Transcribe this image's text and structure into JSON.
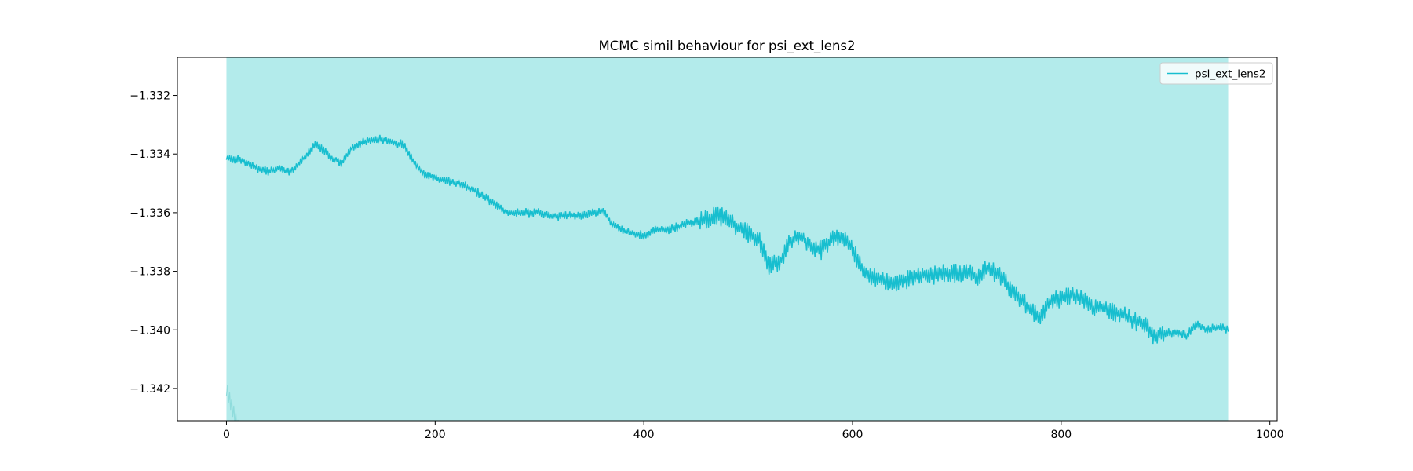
{
  "chart_data": {
    "type": "line",
    "title": "MCMC simil behaviour for psi_ext_lens2",
    "xlabel": "",
    "ylabel": "",
    "xlim": [
      -47,
      1007
    ],
    "ylim": [
      -1.3431,
      -1.3307
    ],
    "xticks": [
      0,
      200,
      400,
      600,
      800,
      1000
    ],
    "xtick_labels": [
      "0",
      "200",
      "400",
      "600",
      "800",
      "1000"
    ],
    "yticks": [
      -1.342,
      -1.34,
      -1.338,
      -1.336,
      -1.334,
      -1.332
    ],
    "ytick_labels": [
      "−1.342",
      "−1.340",
      "−1.338",
      "−1.336",
      "−1.334",
      "−1.332"
    ],
    "grid": false,
    "legend": {
      "location": "upper right",
      "entries": [
        "psi_ext_lens2"
      ]
    },
    "colors": {
      "line": "#17becf",
      "band": "#b3ebeb",
      "axes": "#000000"
    },
    "band": {
      "x_start": 0,
      "x_end": 960,
      "description_note": "shaded uncertainty band spanning the full y-range for iterations 0-960"
    },
    "series": [
      {
        "name": "psi_ext_lens2",
        "x": [
          0,
          10,
          20,
          30,
          40,
          50,
          60,
          70,
          80,
          85,
          90,
          100,
          110,
          120,
          130,
          140,
          150,
          160,
          170,
          180,
          190,
          200,
          210,
          220,
          230,
          240,
          250,
          260,
          270,
          280,
          290,
          300,
          310,
          320,
          330,
          340,
          350,
          360,
          370,
          380,
          390,
          400,
          410,
          420,
          430,
          440,
          450,
          460,
          470,
          480,
          490,
          500,
          510,
          520,
          530,
          540,
          550,
          560,
          570,
          580,
          590,
          600,
          610,
          620,
          630,
          640,
          650,
          660,
          670,
          680,
          690,
          700,
          710,
          720,
          730,
          740,
          750,
          760,
          770,
          780,
          790,
          800,
          810,
          820,
          830,
          840,
          850,
          860,
          870,
          880,
          890,
          900,
          910,
          920,
          930,
          940,
          950,
          960
        ],
        "values": [
          -1.3341,
          -1.3342,
          -1.3343,
          -1.3345,
          -1.3346,
          -1.3345,
          -1.3346,
          -1.3343,
          -1.3339,
          -1.3337,
          -1.3338,
          -1.3341,
          -1.3343,
          -1.3338,
          -1.3336,
          -1.3335,
          -1.3335,
          -1.3336,
          -1.3337,
          -1.3343,
          -1.3347,
          -1.3348,
          -1.3349,
          -1.335,
          -1.3351,
          -1.3353,
          -1.3355,
          -1.3358,
          -1.336,
          -1.336,
          -1.336,
          -1.336,
          -1.3361,
          -1.3361,
          -1.3361,
          -1.3361,
          -1.336,
          -1.3359,
          -1.3364,
          -1.3366,
          -1.3367,
          -1.3368,
          -1.3366,
          -1.3366,
          -1.3365,
          -1.3364,
          -1.3363,
          -1.3362,
          -1.3361,
          -1.3362,
          -1.3365,
          -1.3367,
          -1.3369,
          -1.3378,
          -1.3377,
          -1.337,
          -1.3368,
          -1.3371,
          -1.3373,
          -1.3369,
          -1.3368,
          -1.3372,
          -1.338,
          -1.3382,
          -1.3383,
          -1.3384,
          -1.3383,
          -1.3382,
          -1.3381,
          -1.3381,
          -1.338,
          -1.3381,
          -1.338,
          -1.3382,
          -1.3379,
          -1.3381,
          -1.3385,
          -1.3389,
          -1.3393,
          -1.3396,
          -1.339,
          -1.3389,
          -1.3388,
          -1.3389,
          -1.3393,
          -1.3392,
          -1.3394,
          -1.3395,
          -1.3397,
          -1.3398,
          -1.3402,
          -1.3401,
          -1.3401,
          -1.3402,
          -1.3398,
          -1.34,
          -1.3399,
          -1.34
        ]
      }
    ]
  }
}
